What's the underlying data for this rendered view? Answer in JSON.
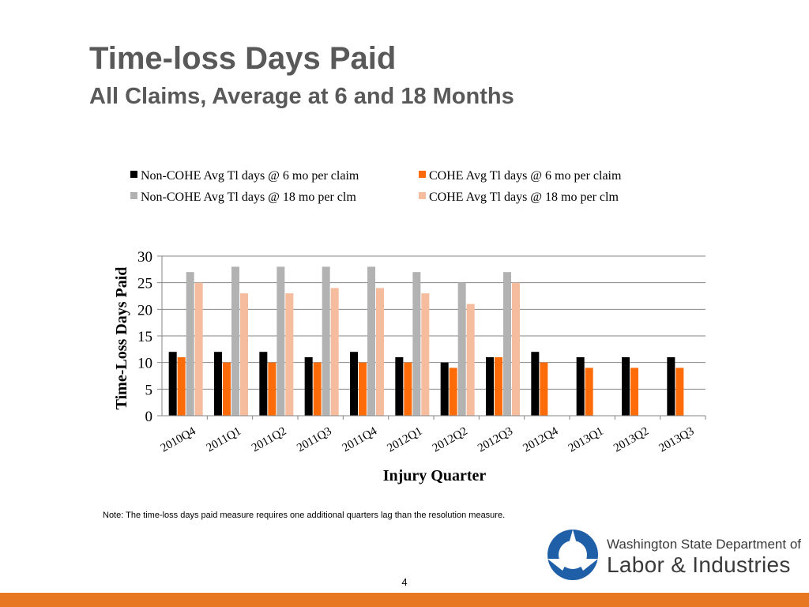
{
  "slide": {
    "title": "Time-loss Days Paid",
    "subtitle": "All Claims, Average at 6 and 18 Months",
    "note": "Note: The time-loss days paid measure requires one additional quarters lag than the resolution measure.",
    "page_number": "4",
    "logo": {
      "line1": "Washington State Department of",
      "line2": "Labor & Industries",
      "mark_color": "#1f5fa8"
    },
    "footer_color": "#e87722"
  },
  "chart_data": {
    "type": "bar",
    "title": "",
    "xlabel": "Injury Quarter",
    "ylabel": "Time-Loss Days Paid",
    "ylim": [
      0,
      30
    ],
    "yticks": [
      0,
      5,
      10,
      15,
      20,
      25,
      30
    ],
    "grid": true,
    "legend_position": "top",
    "categories": [
      "2010Q4",
      "2011Q1",
      "2011Q2",
      "2011Q3",
      "2011Q4",
      "2012Q1",
      "2012Q2",
      "2012Q3",
      "2012Q4",
      "2013Q1",
      "2013Q2",
      "2013Q3"
    ],
    "series": [
      {
        "name": "Non-COHE Avg Tl days @ 6 mo per claim",
        "color": "#000000",
        "values": [
          12,
          12,
          12,
          11,
          12,
          11,
          10,
          11,
          12,
          11,
          11,
          11
        ]
      },
      {
        "name": "COHE Avg Tl days @ 6 mo per claim",
        "color": "#fe6c0a",
        "values": [
          11,
          10,
          10,
          10,
          10,
          10,
          9,
          11,
          10,
          9,
          9,
          9
        ]
      },
      {
        "name": "Non-COHE Avg Tl days @ 18 mo per clm",
        "color": "#b2b2b2",
        "values": [
          27,
          28,
          28,
          28,
          28,
          27,
          25,
          27,
          null,
          null,
          null,
          null
        ]
      },
      {
        "name": "COHE Avg Tl days @ 18 mo per clm",
        "color": "#f5bc9e",
        "values": [
          25,
          23,
          23,
          24,
          24,
          23,
          21,
          25,
          null,
          null,
          null,
          null
        ]
      }
    ]
  }
}
